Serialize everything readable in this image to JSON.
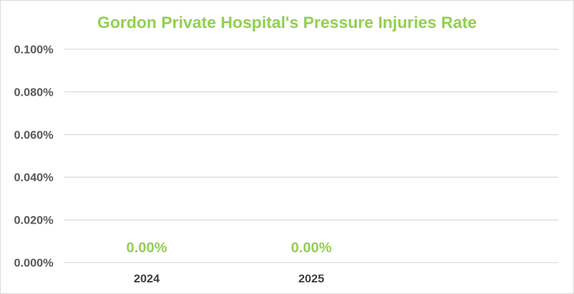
{
  "chart_data": {
    "type": "bar",
    "title": "Gordon Private Hospital's Pressure Injuries Rate",
    "categories": [
      "2024",
      "2025"
    ],
    "values": [
      0.0,
      0.0
    ],
    "data_labels": [
      "0.00%",
      "0.00%"
    ],
    "xlabel": "",
    "ylabel": "",
    "ylim": [
      0,
      0.1
    ],
    "yticks": [
      0.0,
      0.02,
      0.04,
      0.06,
      0.08,
      0.1
    ],
    "ytick_labels": [
      "0.000%",
      "0.020%",
      "0.040%",
      "0.060%",
      "0.080%",
      "0.100%"
    ],
    "grid": true,
    "legend": "none",
    "colors": {
      "title": "#92d050",
      "bar": "#92d050",
      "data_label": "#92d050",
      "gridline": "#d9d9d9",
      "tick_text": "#595959"
    }
  }
}
